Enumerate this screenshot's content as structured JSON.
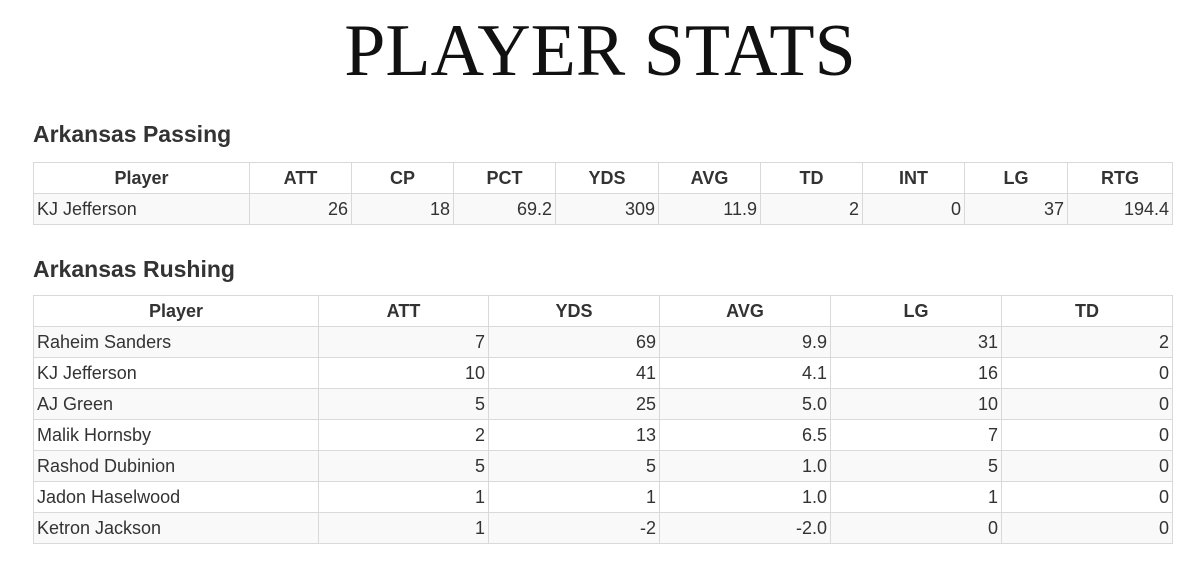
{
  "page": {
    "title": "PLAYER STATS"
  },
  "passing": {
    "title": "Arkansas Passing",
    "headers": [
      "Player",
      "ATT",
      "CP",
      "PCT",
      "YDS",
      "AVG",
      "TD",
      "INT",
      "LG",
      "RTG"
    ],
    "rows": [
      [
        "KJ Jefferson",
        "26",
        "18",
        "69.2",
        "309",
        "11.9",
        "2",
        "0",
        "37",
        "194.4"
      ]
    ]
  },
  "rushing": {
    "title": "Arkansas Rushing",
    "headers": [
      "Player",
      "ATT",
      "YDS",
      "AVG",
      "LG",
      "TD"
    ],
    "rows": [
      [
        "Raheim Sanders",
        "7",
        "69",
        "9.9",
        "31",
        "2"
      ],
      [
        "KJ Jefferson",
        "10",
        "41",
        "4.1",
        "16",
        "0"
      ],
      [
        "AJ Green",
        "5",
        "25",
        "5.0",
        "10",
        "0"
      ],
      [
        "Malik Hornsby",
        "2",
        "13",
        "6.5",
        "7",
        "0"
      ],
      [
        "Rashod Dubinion",
        "5",
        "5",
        "1.0",
        "5",
        "0"
      ],
      [
        "Jadon Haselwood",
        "1",
        "1",
        "1.0",
        "1",
        "0"
      ],
      [
        "Ketron Jackson",
        "1",
        "-2",
        "-2.0",
        "0",
        "0"
      ]
    ]
  }
}
